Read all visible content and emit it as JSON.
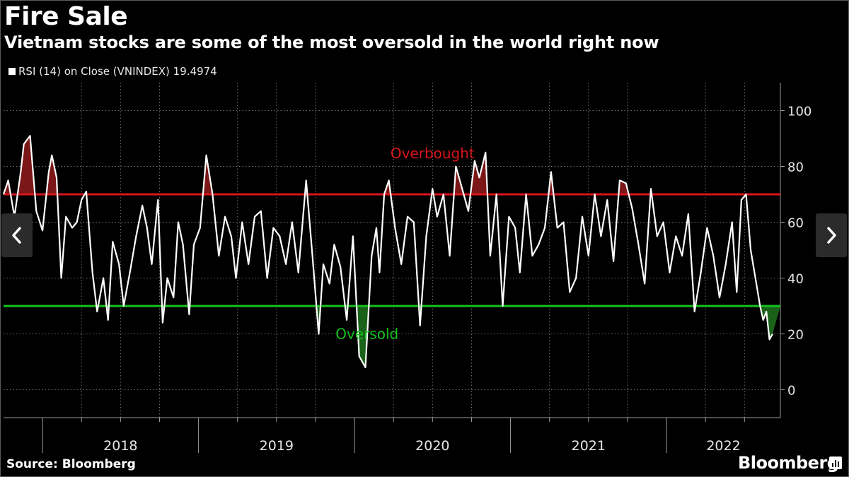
{
  "title": "Fire Sale",
  "subtitle": "Vietnam stocks are some of the most oversold in the world right now",
  "legend": "RSI (14)  on Close (VNINDEX) 19.4974",
  "source": "Source: Bloomberg",
  "brand": "Bloomberg",
  "colors": {
    "line": "#ffffff",
    "overbought": "#d9141b",
    "oversold": "#15c21c",
    "grid": "#6e6e6e",
    "axis": "#9a9a9a"
  },
  "chart_data": {
    "type": "line",
    "title": "Fire Sale",
    "subtitle": "Vietnam stocks are some of the most oversold in the world right now",
    "series": [
      {
        "name": "RSI (14) on Close (VNINDEX)",
        "last_value": 19.4974,
        "x": [
          2017.75,
          2017.78,
          2017.82,
          2017.86,
          2017.88,
          2017.92,
          2017.96,
          2018.0,
          2018.04,
          2018.06,
          2018.09,
          2018.12,
          2018.15,
          2018.19,
          2018.22,
          2018.25,
          2018.28,
          2018.32,
          2018.35,
          2018.39,
          2018.42,
          2018.45,
          2018.49,
          2018.52,
          2018.56,
          2018.6,
          2018.64,
          2018.67,
          2018.7,
          2018.74,
          2018.77,
          2018.8,
          2018.84,
          2018.87,
          2018.9,
          2018.94,
          2018.97,
          2019.01,
          2019.05,
          2019.09,
          2019.13,
          2019.17,
          2019.21,
          2019.24,
          2019.28,
          2019.32,
          2019.36,
          2019.4,
          2019.44,
          2019.48,
          2019.52,
          2019.56,
          2019.6,
          2019.64,
          2019.69,
          2019.73,
          2019.77,
          2019.8,
          2019.84,
          2019.87,
          2019.91,
          2019.95,
          2019.99,
          2020.03,
          2020.07,
          2020.11,
          2020.14,
          2020.16,
          2020.19,
          2020.22,
          2020.26,
          2020.3,
          2020.34,
          2020.38,
          2020.42,
          2020.46,
          2020.5,
          2020.53,
          2020.57,
          2020.61,
          2020.65,
          2020.69,
          2020.73,
          2020.77,
          2020.8,
          2020.84,
          2020.87,
          2020.91,
          2020.95,
          2020.99,
          2021.03,
          2021.06,
          2021.1,
          2021.14,
          2021.18,
          2021.22,
          2021.26,
          2021.3,
          2021.34,
          2021.38,
          2021.42,
          2021.46,
          2021.5,
          2021.54,
          2021.58,
          2021.62,
          2021.66,
          2021.7,
          2021.74,
          2021.78,
          2021.82,
          2021.86,
          2021.9,
          2021.94,
          2021.98,
          2022.02,
          2022.06,
          2022.1,
          2022.14,
          2022.18,
          2022.22,
          2022.26,
          2022.3,
          2022.34,
          2022.38,
          2022.42,
          2022.45,
          2022.48,
          2022.51,
          2022.54,
          2022.57,
          2022.6,
          2022.62,
          2022.64,
          2022.66,
          2022.68
        ],
        "values": [
          70,
          75,
          62,
          78,
          88,
          91,
          64,
          57,
          78,
          84,
          76,
          40,
          62,
          58,
          60,
          68,
          71,
          42,
          28,
          40,
          25,
          53,
          45,
          30,
          42,
          55,
          66,
          58,
          45,
          68,
          24,
          40,
          33,
          60,
          52,
          27,
          52,
          58,
          84,
          70,
          48,
          62,
          55,
          40,
          60,
          45,
          62,
          64,
          40,
          58,
          55,
          45,
          60,
          42,
          75,
          48,
          20,
          45,
          38,
          52,
          44,
          25,
          55,
          12,
          8,
          48,
          58,
          42,
          70,
          75,
          58,
          45,
          62,
          60,
          23,
          55,
          72,
          62,
          70,
          48,
          80,
          72,
          64,
          82,
          76,
          85,
          48,
          70,
          30,
          62,
          58,
          42,
          70,
          48,
          52,
          58,
          78,
          58,
          60,
          35,
          40,
          62,
          48,
          70,
          55,
          68,
          46,
          75,
          74,
          65,
          52,
          38,
          72,
          55,
          60,
          42,
          55,
          48,
          63,
          28,
          42,
          58,
          48,
          33,
          45,
          60,
          35,
          68,
          70,
          50,
          40,
          30,
          25,
          28,
          18,
          20
        ]
      }
    ],
    "xlabel": "",
    "ylabel": "",
    "xlim": [
      2017.75,
      2022.73
    ],
    "ylim": [
      -10,
      110
    ],
    "yticks": [
      0,
      20,
      40,
      60,
      80,
      100
    ],
    "year_labels": [
      "2018",
      "2019",
      "2020",
      "2021",
      "2022"
    ],
    "year_boundaries": [
      2018.0,
      2019.0,
      2020.0,
      2021.0,
      2022.0
    ],
    "quarter_ticks": [
      2018.25,
      2018.5,
      2018.75,
      2019.25,
      2019.5,
      2019.75,
      2020.25,
      2020.5,
      2020.75,
      2021.25,
      2021.5,
      2021.75,
      2022.25,
      2022.5
    ],
    "reference_lines": [
      {
        "name": "overbought",
        "value": 70,
        "label": "Overbought"
      },
      {
        "name": "oversold",
        "value": 30,
        "label": "Oversold"
      }
    ],
    "annotations": [
      {
        "text": "Overbought",
        "x": 2020.5,
        "y": 85
      },
      {
        "text": "Oversold",
        "x": 2020.08,
        "y": 20
      }
    ],
    "grid": true,
    "legend": "top-left"
  }
}
